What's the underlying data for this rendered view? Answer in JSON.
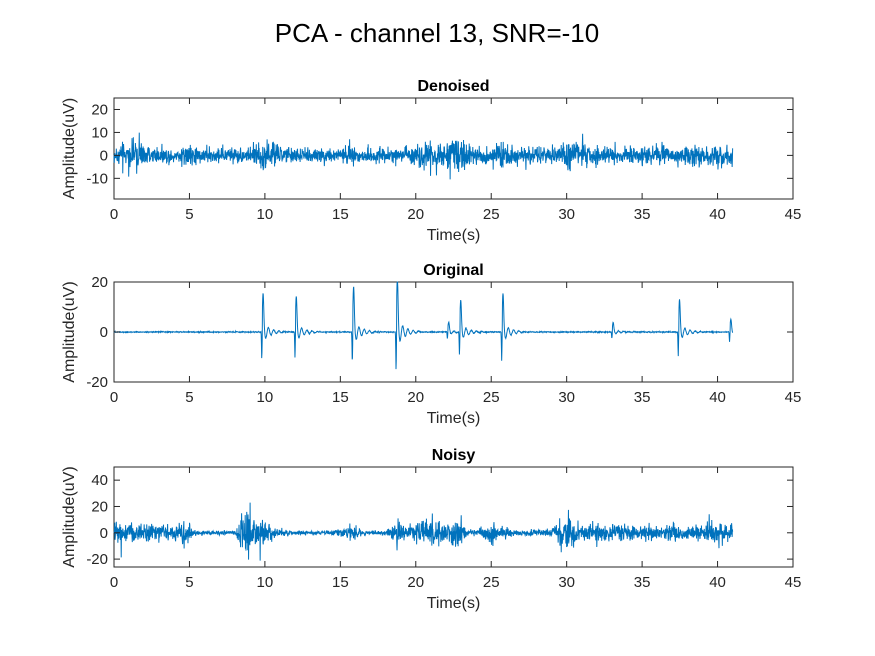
{
  "figure": {
    "title": "PCA - channel 13, SNR=-10"
  },
  "chart_data": [
    {
      "type": "line",
      "title": "Denoised",
      "xlabel": "Time(s)",
      "ylabel": "Amplitude(uV)",
      "xlim": [
        0,
        45
      ],
      "ylim": [
        -19,
        25
      ],
      "xticks": [
        0,
        5,
        10,
        15,
        20,
        25,
        30,
        35,
        40,
        45
      ],
      "yticks": [
        -10,
        0,
        10,
        20
      ],
      "duration": 41,
      "series": [
        {
          "name": "Denoised",
          "envelope": {
            "t": [
              0,
              1,
              1.5,
              2,
              3,
              4,
              5,
              5.5,
              6,
              7,
              8,
              9,
              9.5,
              10,
              11,
              12,
              13,
              14,
              15,
              15.5,
              16,
              17,
              18,
              19,
              20,
              21,
              22,
              22.8,
              23.5,
              24,
              25,
              25.7,
              26,
              27,
              28,
              29,
              30,
              31,
              32,
              33,
              34,
              35,
              36,
              37,
              38,
              39,
              40,
              41
            ],
            "amp": [
              7,
              9,
              12,
              8,
              7,
              6,
              9,
              7,
              6,
              6,
              6,
              5,
              13,
              12,
              8,
              6,
              6,
              6,
              7,
              10,
              7,
              6,
              6,
              6,
              8,
              13,
              12,
              16,
              10,
              8,
              8,
              14,
              9,
              7,
              7,
              7,
              13,
              9,
              8,
              7,
              7,
              8,
              8,
              7,
              8,
              8,
              9,
              8
            ]
          }
        }
      ]
    },
    {
      "type": "line",
      "title": "Original",
      "xlabel": "Time(s)",
      "ylabel": "Amplitude(uV)",
      "xlim": [
        0,
        45
      ],
      "ylim": [
        -20,
        20
      ],
      "xticks": [
        0,
        5,
        10,
        15,
        20,
        25,
        30,
        35,
        40,
        45
      ],
      "yticks": [
        -20,
        0,
        20
      ],
      "duration": 41,
      "series": [
        {
          "name": "Original",
          "baseline": 0,
          "spikes": [
            {
              "t": 9.8,
              "amp": 12
            },
            {
              "t": 12.0,
              "amp": 11
            },
            {
              "t": 15.8,
              "amp": 14
            },
            {
              "t": 18.7,
              "amp": 17
            },
            {
              "t": 22.1,
              "amp": 3
            },
            {
              "t": 22.9,
              "amp": 10
            },
            {
              "t": 25.7,
              "amp": 12
            },
            {
              "t": 33.0,
              "amp": 3
            },
            {
              "t": 37.4,
              "amp": 10
            },
            {
              "t": 40.8,
              "amp": 4
            }
          ]
        }
      ]
    },
    {
      "type": "line",
      "title": "Noisy",
      "xlabel": "Time(s)",
      "ylabel": "Amplitude(uV)",
      "xlim": [
        0,
        45
      ],
      "ylim": [
        -26,
        50
      ],
      "xticks": [
        0,
        5,
        10,
        15,
        20,
        25,
        30,
        35,
        40,
        45
      ],
      "yticks": [
        -20,
        0,
        20,
        40
      ],
      "duration": 41,
      "series": [
        {
          "name": "Noisy",
          "envelope": {
            "t": [
              0,
              1,
              2,
              3,
              4,
              4.8,
              5.3,
              6,
              7,
              8,
              8.9,
              9.3,
              10,
              11,
              12,
              13,
              14,
              15,
              15.7,
              16.5,
              17,
              18,
              18.7,
              19.5,
              20,
              21,
              22,
              22.8,
              23.5,
              24,
              25,
              25.8,
              26.5,
              27,
              28,
              29,
              30,
              31,
              32,
              33,
              34,
              35,
              36,
              37,
              38,
              39,
              40,
              41
            ],
            "amp": [
              14,
              16,
              13,
              12,
              10,
              18,
              6,
              3,
              3,
              3,
              40,
              18,
              15,
              5,
              3,
              3,
              3,
              5,
              14,
              5,
              3,
              3,
              18,
              8,
              14,
              20,
              17,
              22,
              6,
              4,
              14,
              8,
              4,
              3,
              5,
              5,
              28,
              10,
              14,
              10,
              12,
              10,
              10,
              12,
              10,
              12,
              18,
              14
            ]
          }
        }
      ]
    }
  ]
}
